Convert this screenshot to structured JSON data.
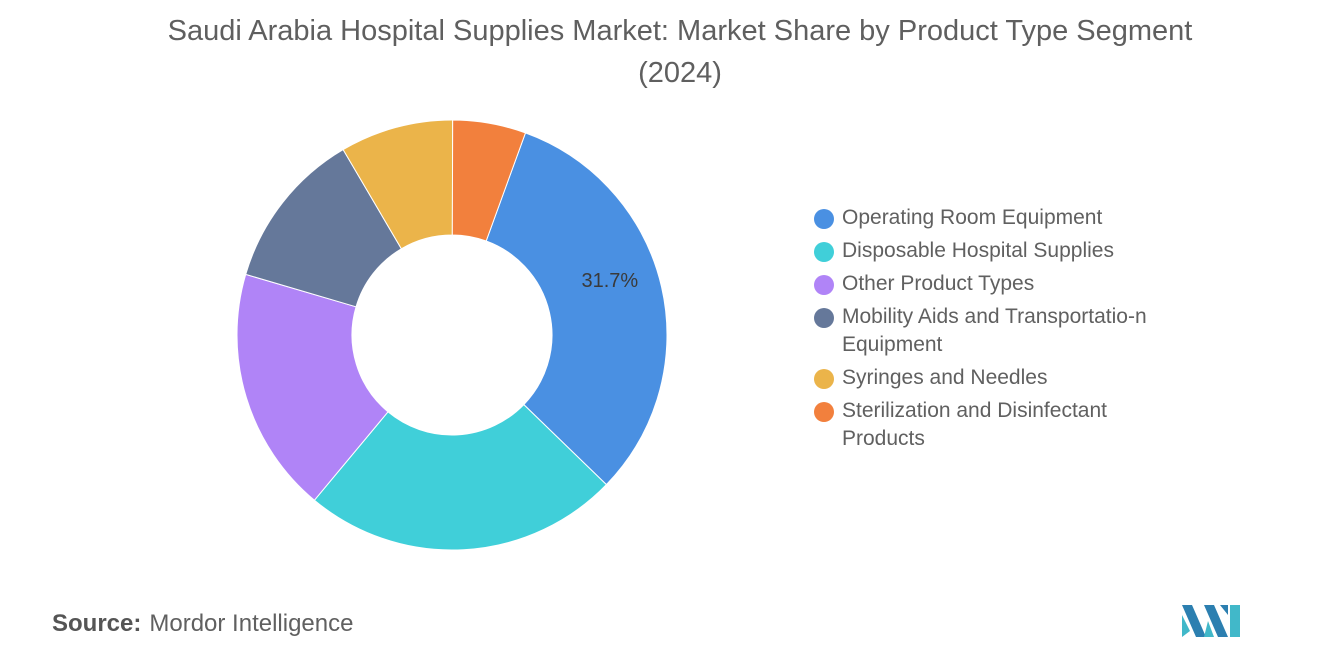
{
  "chart_data": {
    "type": "pie",
    "title": "Saudi Arabia Hospital Supplies Market: Market Share by Product Type Segment (2024)",
    "categories": [
      "Operating Room Equipment",
      "Disposable Hospital Supplies",
      "Other Product Types",
      "Mobility Aids and Transportation Equipment",
      "Syringes and Needles",
      "Sterilization and Disinfectant Products"
    ],
    "legend_labels": [
      "Operating Room Equipment",
      "Disposable Hospital Supplies",
      "Other Product Types",
      "Mobility Aids and Transportatio-n Equipment",
      "Syringes and Needles",
      "Sterilization and Disinfectant Products"
    ],
    "values": [
      31.7,
      23.8,
      18.5,
      12.0,
      8.5,
      5.5
    ],
    "colors": [
      "#4a90e2",
      "#40cfd9",
      "#b084f7",
      "#65789a",
      "#ebb44a",
      "#f2803d"
    ],
    "data_labels": [
      "31.7%",
      "",
      "",
      "",
      "",
      ""
    ],
    "donut": true,
    "legend_position": "right"
  },
  "source": {
    "label": "Source:",
    "text": "Mordor Intelligence"
  }
}
